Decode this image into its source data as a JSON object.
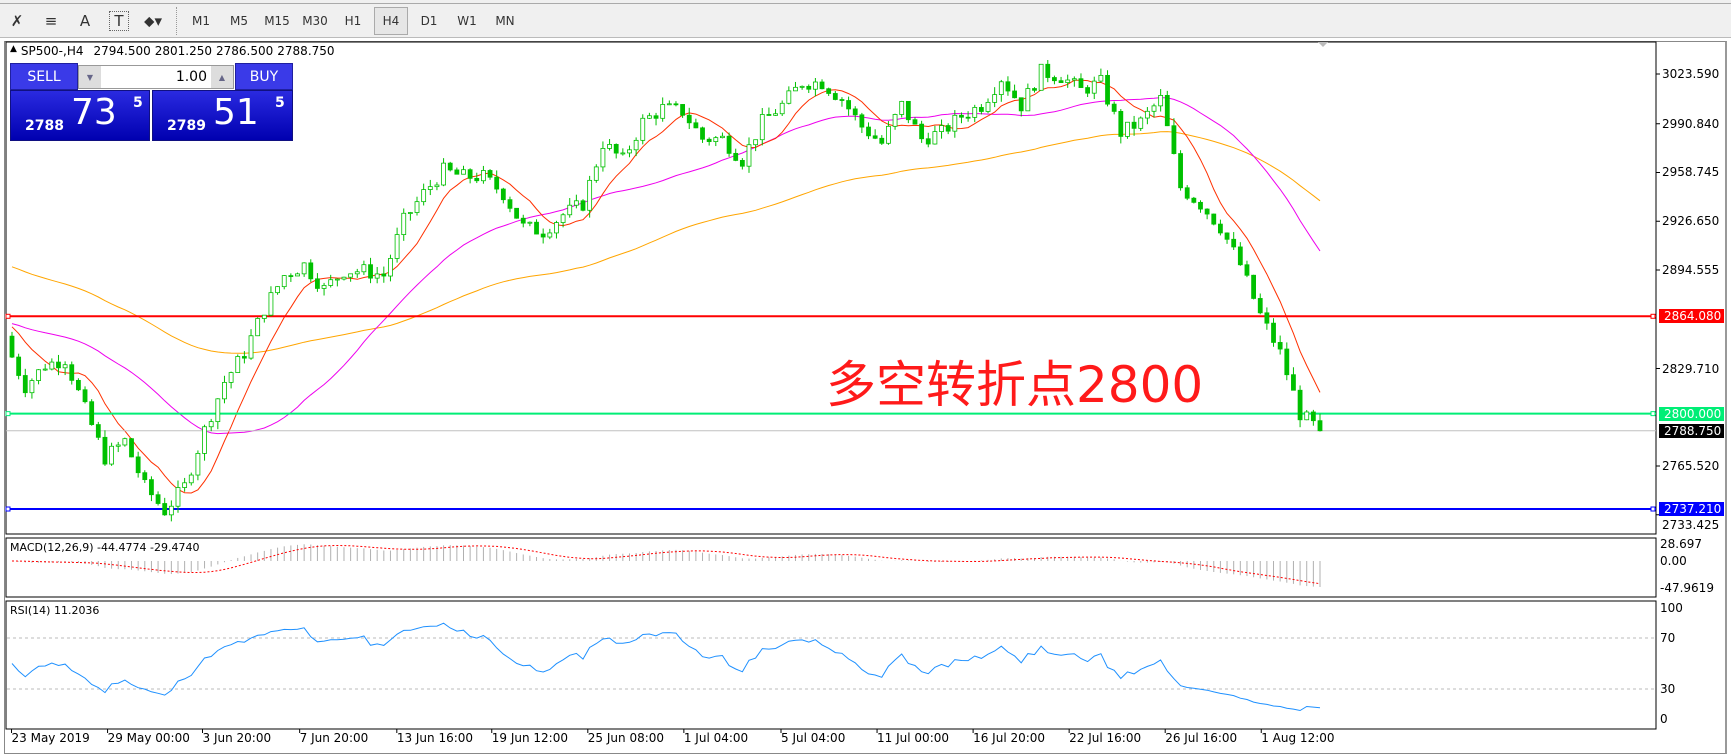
{
  "toolbar": {
    "icons": [
      {
        "name": "elliott-wave-icon",
        "glyph": "✗"
      },
      {
        "name": "fibonacci-icon",
        "glyph": "≡"
      },
      {
        "name": "text-icon",
        "glyph": "A"
      },
      {
        "name": "text-label-icon",
        "glyph": "T"
      },
      {
        "name": "arrows-icon",
        "glyph": "⬥▾"
      }
    ],
    "timeframes": [
      "M1",
      "M5",
      "M15",
      "M30",
      "H1",
      "H4",
      "D1",
      "W1",
      "MN"
    ],
    "active_timeframe": "H4"
  },
  "header": {
    "symbol": "SP500-,H4",
    "open": "2794.500",
    "high": "2801.250",
    "low": "2786.500",
    "close": "2788.750"
  },
  "trade_panel": {
    "sell_label": "SELL",
    "buy_label": "BUY",
    "lot": "1.00",
    "sell_small": "2788",
    "sell_big": "73",
    "sell_sup": "5",
    "buy_small": "2789",
    "buy_big": "51",
    "buy_sup": "5"
  },
  "price_axis": [
    "3023.590",
    "2990.840",
    "2958.745",
    "2926.650",
    "2894.555",
    "2829.710",
    "2765.520",
    "2733.425"
  ],
  "hlines": [
    {
      "label": "2864.080",
      "value": 2864.08,
      "color": "#ff0000"
    },
    {
      "label": "2800.000",
      "value": 2800.0,
      "color": "#00ee76"
    },
    {
      "label": "2737.210",
      "value": 2737.21,
      "color": "#0000ff"
    }
  ],
  "bid": {
    "label": "2788.750",
    "value": 2788.75
  },
  "annotation": "多空转折点2800",
  "macd": {
    "label": "MACD(12,26,9) -44.4774 -29.4740",
    "axis": [
      "28.697",
      "0.00",
      "-47.9619"
    ]
  },
  "rsi": {
    "label": "RSI(14) 11.2036",
    "axis": [
      "100",
      "70",
      "30",
      "0"
    ]
  },
  "time_axis": [
    "23 May 2019",
    "29 May 00:00",
    "3 Jun 20:00",
    "7 Jun 20:00",
    "13 Jun 16:00",
    "19 Jun 12:00",
    "25 Jun 08:00",
    "1 Jul 04:00",
    "5 Jul 04:00",
    "11 Jul 00:00",
    "16 Jul 20:00",
    "22 Jul 16:00",
    "26 Jul 16:00",
    "1 Aug 12:00"
  ],
  "colors": {
    "bull": "#00c000",
    "bear": "#00c000",
    "ma_fast": "#ff3000",
    "ma_mid": "#ee00ee",
    "ma_slow": "#ffa500",
    "rsi": "#1e90ff",
    "macd_signal": "#ff0000",
    "macd_hist": "#b0b0b0"
  },
  "chart_data": {
    "type": "candlestick",
    "symbol": "SP500-",
    "timeframe": "H4",
    "ylim": [
      2733.425,
      3040
    ],
    "closes": [
      2847,
      2818,
      2832,
      2836,
      2803,
      2771,
      2782,
      2752,
      2736,
      2752,
      2789,
      2821,
      2840,
      2869,
      2891,
      2898,
      2882,
      2894,
      2894,
      2891,
      2927,
      2945,
      2960,
      2956,
      2956,
      2945,
      2923,
      2920,
      2931,
      2938,
      2978,
      2967,
      2992,
      3001,
      2999,
      2981,
      2981,
      2967,
      2992,
      3003,
      3018,
      3018,
      3007,
      2989,
      2978,
      3003,
      2981,
      2985,
      2996,
      3003,
      3021,
      3003,
      3025,
      3022,
      3013,
      3018,
      2985,
      2992,
      3007,
      2949,
      2938,
      2923,
      2898,
      2865,
      2840,
      2800,
      2788.75
    ]
  }
}
